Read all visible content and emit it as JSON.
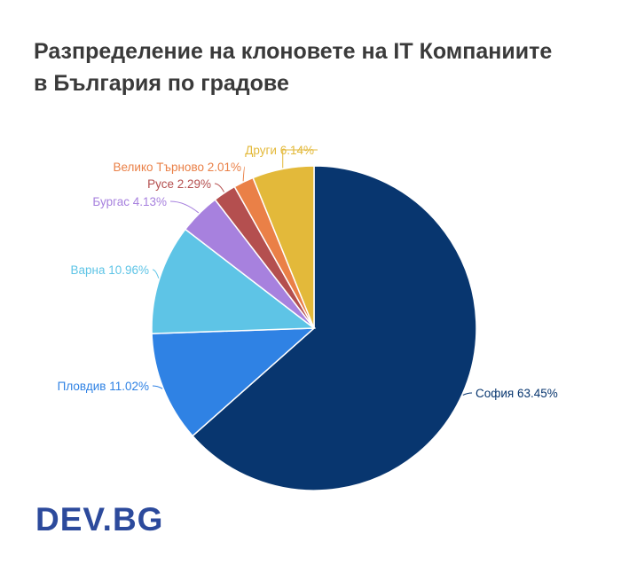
{
  "title_lines": [
    "Разпределение на клоновете на IT Компаниите",
    "в България по градове"
  ],
  "logo_text": "DEV.BG",
  "chart_data": {
    "type": "pie",
    "title": "Разпределение на клоновете на IT Компаниите в България по градове",
    "start": "12 o'clock",
    "direction": "clockwise",
    "slices": [
      {
        "label": "София",
        "value": 63.45,
        "display": "София 63.45%",
        "color": "#08366f"
      },
      {
        "label": "Пловдив",
        "value": 11.02,
        "display": "Пловдив 11.02%",
        "color": "#2f82e4"
      },
      {
        "label": "Варна",
        "value": 10.96,
        "display": "Варна 10.96%",
        "color": "#5ec4e6"
      },
      {
        "label": "Бургас",
        "value": 4.13,
        "display": "Бургас 4.13%",
        "color": "#a781de"
      },
      {
        "label": "Русе",
        "value": 2.29,
        "display": "Русе 2.29%",
        "color": "#b44f4f"
      },
      {
        "label": "Велико Търново",
        "value": 2.01,
        "display": "Велико Търново 2.01%",
        "color": "#ea8047"
      },
      {
        "label": "Други",
        "value": 6.14,
        "display": "Други 6.14%",
        "color": "#e3b93a"
      }
    ]
  }
}
